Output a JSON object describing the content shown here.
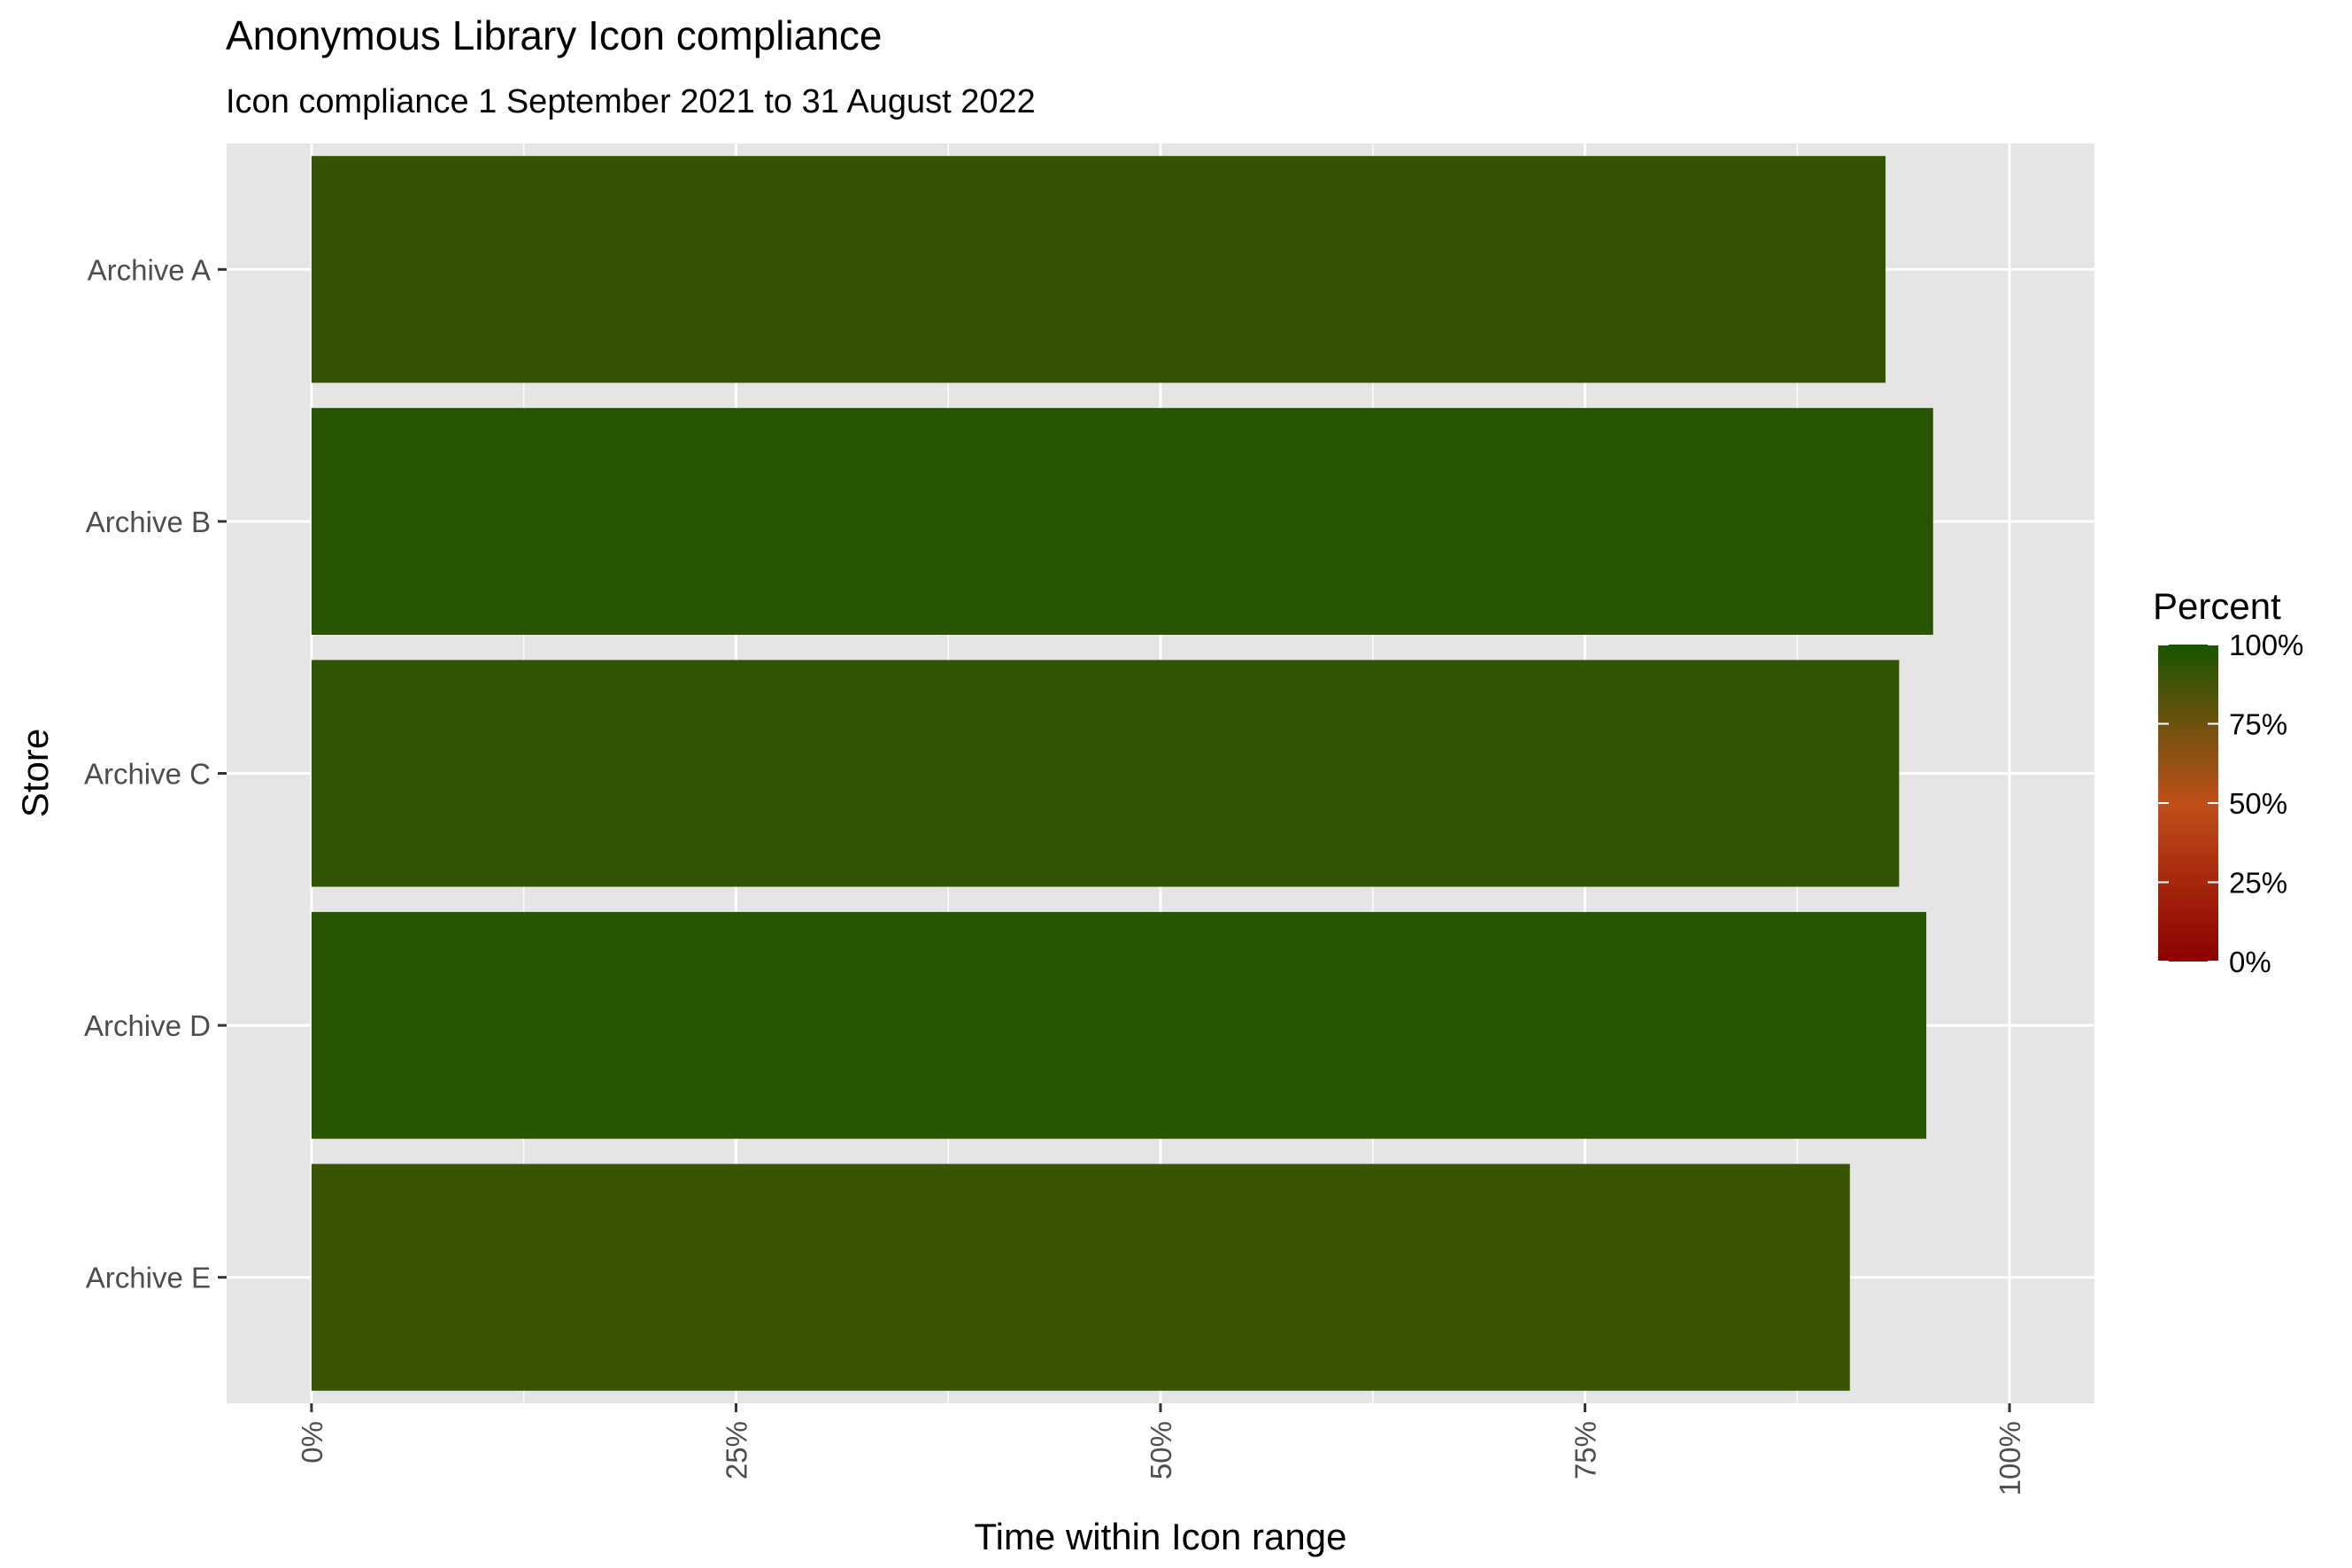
{
  "chart_data": {
    "type": "bar",
    "orientation": "horizontal",
    "title": "Anonymous Library Icon compliance",
    "subtitle": "Icon compliance 1 September 2021 to 31 August 2022",
    "xlabel": "Time within Icon range",
    "ylabel": "Store",
    "categories": [
      "Archive A",
      "Archive B",
      "Archive C",
      "Archive D",
      "Archive E"
    ],
    "values": [
      92.7,
      95.5,
      93.5,
      95.1,
      90.6
    ],
    "value_unit": "%",
    "xlim": [
      -5,
      105
    ],
    "x_ticks": [
      "0%",
      "25%",
      "50%",
      "75%",
      "100%"
    ],
    "x_tick_values": [
      0,
      25,
      50,
      75,
      100
    ],
    "grid": true,
    "legend": {
      "title": "Percent",
      "position": "right",
      "type": "colorbar",
      "labels": [
        "100%",
        "75%",
        "50%",
        "25%",
        "0%"
      ],
      "label_values": [
        100,
        75,
        50,
        25,
        0
      ],
      "color_stops": [
        {
          "value": 0,
          "color": "#8b0000"
        },
        {
          "value": 50,
          "color": "#c0501a"
        },
        {
          "value": 100,
          "color": "#1a5500"
        }
      ]
    },
    "panel_background": "#e5e5e5",
    "grid_color": "#ffffff"
  }
}
